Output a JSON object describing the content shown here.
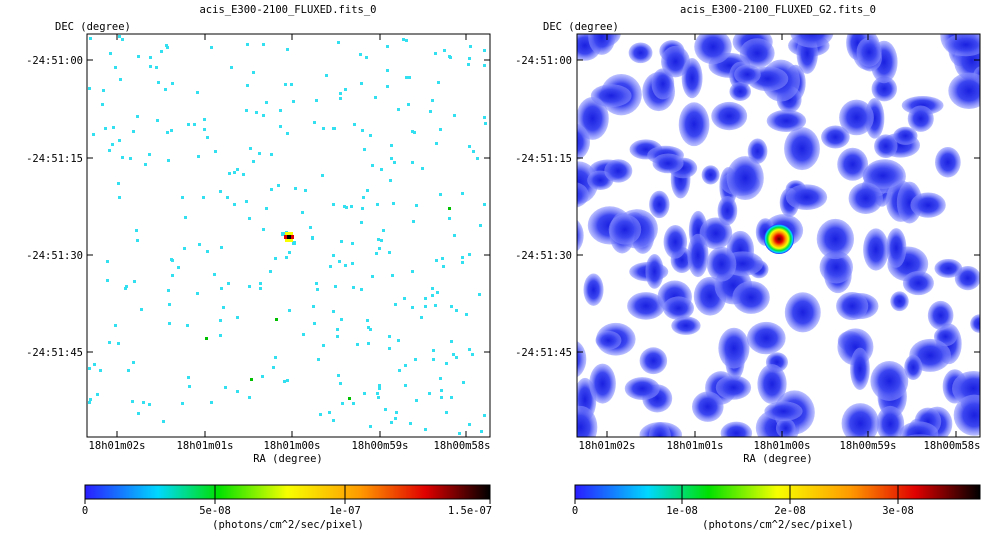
{
  "panels": [
    {
      "title": "acis_E300-2100_FLUXED.fits_0",
      "ylabel": "DEC (degree)",
      "xlabel": "RA (degree)",
      "dec_ticks": [
        "-24:51:00",
        "-24:51:15",
        "-24:51:30",
        "-24:51:45"
      ],
      "ra_ticks": [
        "18h01m02s",
        "18h01m01s",
        "18h01m00s",
        "18h00m59s",
        "18h00m58s"
      ],
      "colorbar": {
        "ticks": [
          "0",
          "5e-08",
          "1e-07",
          "1.5e-07"
        ],
        "unit": "(photons/cm^2/sec/pixel)"
      }
    },
    {
      "title": "acis_E300-2100_FLUXED_G2.fits_0",
      "ylabel": "DEC (degree)",
      "xlabel": "RA (degree)",
      "dec_ticks": [
        "-24:51:00",
        "-24:51:15",
        "-24:51:30",
        "-24:51:45"
      ],
      "ra_ticks": [
        "18h01m02s",
        "18h01m01s",
        "18h01m00s",
        "18h00m59s",
        "18h00m58s"
      ],
      "colorbar": {
        "ticks": [
          "0",
          "1e-08",
          "2e-08",
          "3e-08"
        ],
        "unit": "(photons/cm^2/sec/pixel)"
      }
    }
  ],
  "colors": {
    "colormap": [
      "#2a1cff",
      "#00d8ff",
      "#00e000",
      "#f7ff00",
      "#ff9a00",
      "#e00000",
      "#000000"
    ],
    "event_pixel": "#33e0f0",
    "source_core": "#8b0000"
  }
}
